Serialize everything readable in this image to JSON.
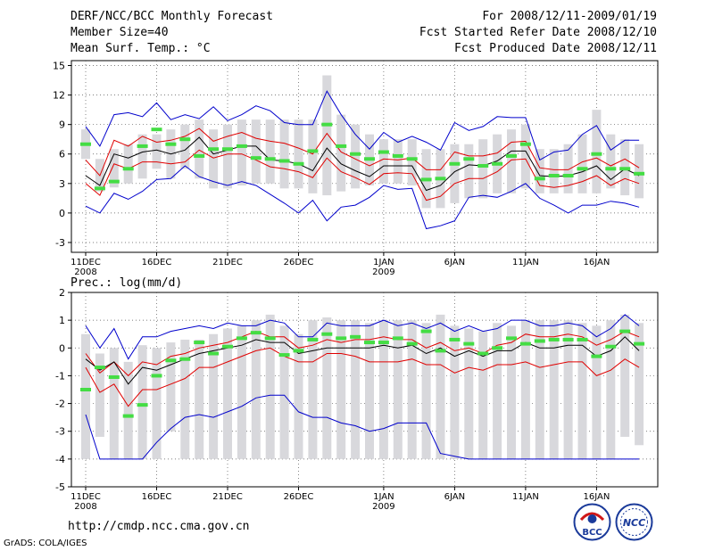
{
  "header": {
    "title": "DERF/NCC/BCC Monthly Forecast",
    "member_size": "Member Size=40",
    "variable": "Mean Surf. Temp.: °C",
    "period": "For 2008/12/11-2009/01/19",
    "fcst_started": "Fcst Started Refer Date 2008/12/10",
    "fcst_produced": "Fcst Produced Date 2008/12/11"
  },
  "footer": {
    "url": "http://cmdp.ncc.cma.gov.cn",
    "credit": "GrADS: COLA/IGES",
    "logo_left_text": "BCC",
    "logo_right_text": "NCC"
  },
  "colors": {
    "box": "#d8d8dc",
    "ensemble_mean": "#000000",
    "spread": "#e00000",
    "extreme": "#0000cc",
    "observed": "#44dd44",
    "grid": "#555555"
  },
  "chart_data": [
    {
      "type": "box-line",
      "title": "Mean Surf. Temp.: °C",
      "x_tick_labels": [
        "11DEC",
        "16DEC",
        "21DEC",
        "26DEC",
        "1JAN",
        "6JAN",
        "11JAN",
        "16JAN"
      ],
      "x_tick_days": [
        0,
        5,
        10,
        15,
        21,
        26,
        31,
        36
      ],
      "x_year_labels": [
        {
          "day": 0,
          "text": "2008"
        },
        {
          "day": 21,
          "text": "2009"
        }
      ],
      "ylim": [
        -4,
        15.5
      ],
      "y_ticks": [
        -3,
        0,
        3,
        6,
        9,
        12,
        15
      ],
      "box_low": [
        5.5,
        2.2,
        2.6,
        3.0,
        3.5,
        4.5,
        3.5,
        4.5,
        3.5,
        2.5,
        2.5,
        2.8,
        3.0,
        3.0,
        2.5,
        2.5,
        2.0,
        1.8,
        2.2,
        2.5,
        2.8,
        3.0,
        3.0,
        2.8,
        0.5,
        0.5,
        1.0,
        1.5,
        1.5,
        2.0,
        2.0,
        2.5,
        2.0,
        2.0,
        2.0,
        2.0,
        2.0,
        2.5,
        1.8,
        1.5
      ],
      "box_high": [
        8.5,
        5.5,
        6.5,
        7.0,
        8.0,
        8.0,
        8.5,
        9.0,
        9.5,
        8.5,
        9.0,
        9.5,
        9.5,
        9.5,
        9.5,
        9.5,
        9.5,
        14.0,
        10.0,
        9.0,
        8.0,
        7.5,
        7.5,
        7.5,
        6.5,
        6.5,
        7.0,
        7.0,
        7.5,
        8.0,
        8.5,
        9.0,
        6.5,
        6.5,
        7.0,
        8.0,
        10.5,
        8.0,
        7.5,
        7.0
      ],
      "max": [
        8.8,
        6.8,
        10.0,
        10.2,
        9.8,
        11.2,
        9.5,
        10.0,
        9.6,
        10.8,
        9.4,
        10.0,
        10.9,
        10.4,
        9.2,
        9.0,
        9.0,
        12.4,
        10.0,
        8.0,
        6.5,
        8.2,
        7.2,
        7.8,
        7.2,
        6.4,
        9.2,
        8.4,
        8.8,
        9.8,
        9.7,
        9.7,
        5.4,
        6.2,
        6.4,
        8.0,
        8.9,
        6.4,
        7.4,
        7.4
      ],
      "upper": [
        5.4,
        3.8,
        7.4,
        6.8,
        7.8,
        7.2,
        7.4,
        7.8,
        8.6,
        7.3,
        7.8,
        8.2,
        7.6,
        7.3,
        7.1,
        6.6,
        6.0,
        8.1,
        6.2,
        5.5,
        4.8,
        5.5,
        5.4,
        5.6,
        4.4,
        4.4,
        6.2,
        5.8,
        5.8,
        6.1,
        7.2,
        7.3,
        4.6,
        4.4,
        4.4,
        5.2,
        5.6,
        4.8,
        5.5,
        4.6
      ],
      "mean": [
        3.8,
        2.8,
        6.0,
        5.6,
        6.2,
        6.4,
        6.0,
        6.4,
        7.7,
        6.0,
        6.4,
        6.8,
        6.8,
        5.4,
        5.3,
        5.0,
        4.3,
        6.6,
        5.0,
        4.3,
        3.7,
        4.8,
        4.8,
        4.8,
        2.3,
        2.8,
        4.2,
        4.9,
        4.8,
        5.3,
        6.3,
        6.3,
        3.8,
        3.7,
        3.8,
        4.2,
        4.8,
        3.4,
        4.5,
        3.8
      ],
      "lower": [
        3.0,
        1.8,
        5.0,
        4.5,
        5.2,
        5.2,
        5.0,
        5.2,
        6.4,
        5.6,
        6.0,
        6.0,
        5.4,
        4.7,
        4.5,
        4.2,
        3.6,
        5.6,
        4.2,
        3.6,
        2.9,
        4.0,
        4.1,
        4.0,
        1.3,
        1.7,
        3.0,
        3.5,
        3.5,
        4.2,
        5.4,
        5.5,
        2.8,
        2.6,
        2.8,
        3.2,
        3.8,
        2.8,
        3.5,
        3.0
      ],
      "min": [
        0.7,
        0.0,
        2.0,
        1.4,
        2.2,
        3.4,
        3.5,
        4.8,
        3.7,
        3.2,
        2.8,
        3.2,
        2.8,
        1.9,
        1.0,
        0.0,
        1.3,
        -0.8,
        0.6,
        0.8,
        1.6,
        2.8,
        2.4,
        2.5,
        -1.6,
        -1.3,
        -0.8,
        1.6,
        1.8,
        1.6,
        2.2,
        3.0,
        1.5,
        0.8,
        0.0,
        0.8,
        0.8,
        1.2,
        1.0,
        0.6
      ],
      "observed": [
        7.0,
        2.5,
        3.2,
        4.5,
        6.8,
        8.5,
        7.0,
        7.5,
        5.8,
        6.5,
        6.5,
        6.8,
        5.6,
        5.5,
        5.3,
        5.0,
        6.3,
        9.0,
        6.8,
        6.0,
        5.5,
        6.2,
        5.8,
        5.5,
        3.4,
        3.5,
        5.0,
        5.5,
        4.8,
        5.0,
        5.8,
        7.0,
        3.5,
        3.8,
        3.8,
        4.5,
        6.0,
        4.5,
        4.5,
        4.0
      ]
    },
    {
      "type": "box-line",
      "title": "Prec.: log(mm/d)",
      "x_tick_labels": [
        "11DEC",
        "16DEC",
        "21DEC",
        "26DEC",
        "1JAN",
        "6JAN",
        "11JAN",
        "16JAN"
      ],
      "x_tick_days": [
        0,
        5,
        10,
        15,
        21,
        26,
        31,
        36
      ],
      "x_year_labels": [
        {
          "day": 0,
          "text": "2008"
        },
        {
          "day": 21,
          "text": "2009"
        }
      ],
      "ylim": [
        -5,
        2
      ],
      "y_ticks": [
        -5,
        -4,
        -3,
        -2,
        -1,
        0,
        1,
        2
      ],
      "box_low": [
        -4,
        -3.2,
        -4,
        -4,
        -4,
        -4,
        -3,
        -4,
        -4,
        -4,
        -4,
        -4,
        -4,
        -4,
        -4,
        -4,
        -4,
        -4,
        -4,
        -4,
        -4,
        -4,
        -4,
        -4,
        -4,
        -4,
        -4,
        -4,
        -4,
        -4,
        -4,
        -4,
        -4,
        -4,
        -4,
        -4,
        -4,
        -4,
        -3.2,
        -3.5
      ],
      "box_high": [
        0.5,
        -0.2,
        0.0,
        -0.5,
        0.1,
        0.0,
        0.2,
        0.3,
        0.3,
        0.5,
        0.7,
        0.8,
        1.0,
        1.2,
        0.8,
        0.5,
        1.0,
        1.1,
        1.0,
        1.0,
        0.9,
        1.0,
        1.0,
        1.0,
        0.9,
        1.2,
        0.8,
        0.7,
        0.6,
        0.9,
        0.8,
        1.0,
        1.0,
        1.0,
        1.0,
        0.9,
        0.8,
        1.0,
        1.2,
        0.9
      ],
      "max": [
        0.8,
        0.0,
        0.7,
        -0.4,
        0.4,
        0.4,
        0.6,
        0.7,
        0.8,
        0.7,
        0.9,
        0.8,
        0.8,
        1.0,
        0.9,
        0.4,
        0.4,
        0.9,
        0.8,
        0.8,
        0.8,
        1.0,
        0.8,
        0.9,
        0.7,
        0.9,
        0.6,
        0.8,
        0.6,
        0.7,
        1.0,
        1.0,
        0.8,
        0.8,
        0.9,
        0.8,
        0.4,
        0.7,
        1.2,
        0.8
      ],
      "upper": [
        -0.2,
        -0.9,
        -0.5,
        -1.0,
        -0.5,
        -0.6,
        -0.3,
        -0.2,
        0.0,
        0.1,
        0.2,
        0.4,
        0.6,
        0.4,
        0.4,
        0.0,
        0.1,
        0.3,
        0.2,
        0.3,
        0.3,
        0.4,
        0.3,
        0.3,
        0.0,
        0.2,
        -0.1,
        0.0,
        -0.2,
        0.1,
        0.2,
        0.5,
        0.4,
        0.4,
        0.5,
        0.4,
        0.1,
        0.3,
        0.6,
        0.4
      ],
      "mean": [
        -0.4,
        -0.8,
        -0.5,
        -1.3,
        -0.7,
        -0.8,
        -0.6,
        -0.4,
        -0.2,
        -0.1,
        0.0,
        0.1,
        0.3,
        0.2,
        0.2,
        -0.2,
        -0.1,
        0.0,
        0.0,
        0.0,
        0.0,
        0.1,
        0.0,
        0.1,
        -0.2,
        0.0,
        -0.3,
        -0.1,
        -0.3,
        -0.1,
        -0.1,
        0.2,
        0.0,
        0.0,
        0.1,
        0.1,
        -0.3,
        -0.1,
        0.4,
        -0.1
      ],
      "lower": [
        -0.7,
        -1.6,
        -1.3,
        -2.1,
        -1.5,
        -1.5,
        -1.3,
        -1.1,
        -0.7,
        -0.7,
        -0.5,
        -0.3,
        -0.1,
        0.0,
        -0.3,
        -0.5,
        -0.5,
        -0.2,
        -0.2,
        -0.3,
        -0.5,
        -0.5,
        -0.5,
        -0.4,
        -0.6,
        -0.6,
        -0.9,
        -0.7,
        -0.8,
        -0.6,
        -0.6,
        -0.5,
        -0.7,
        -0.6,
        -0.5,
        -0.5,
        -1.0,
        -0.8,
        -0.4,
        -0.7
      ],
      "min": [
        -2.4,
        -4.0,
        -4.0,
        -4.0,
        -4.0,
        -3.4,
        -2.9,
        -2.5,
        -2.4,
        -2.5,
        -2.3,
        -2.1,
        -1.8,
        -1.7,
        -1.7,
        -2.3,
        -2.5,
        -2.5,
        -2.7,
        -2.8,
        -3.0,
        -2.9,
        -2.7,
        -2.7,
        -2.7,
        -3.8,
        -3.9,
        -4.0,
        -4.0,
        -4.0,
        -4.0,
        -4.0,
        -4.0,
        -4.0,
        -4.0,
        -4.0,
        -4.0,
        -4.0,
        -4.0,
        -4.0
      ],
      "observed": [
        -1.5,
        -0.7,
        -1.05,
        -2.45,
        -2.05,
        -1.0,
        -0.45,
        -0.4,
        0.2,
        -0.2,
        0.05,
        0.35,
        0.55,
        0.35,
        -0.25,
        -0.1,
        0.3,
        0.5,
        0.35,
        0.4,
        0.2,
        0.2,
        0.35,
        0.15,
        0.6,
        -0.1,
        0.3,
        0.15,
        -0.2,
        0.0,
        0.35,
        0.15,
        0.25,
        0.3,
        0.3,
        0.3,
        -0.3,
        0.05,
        0.6,
        0.15
      ]
    }
  ]
}
